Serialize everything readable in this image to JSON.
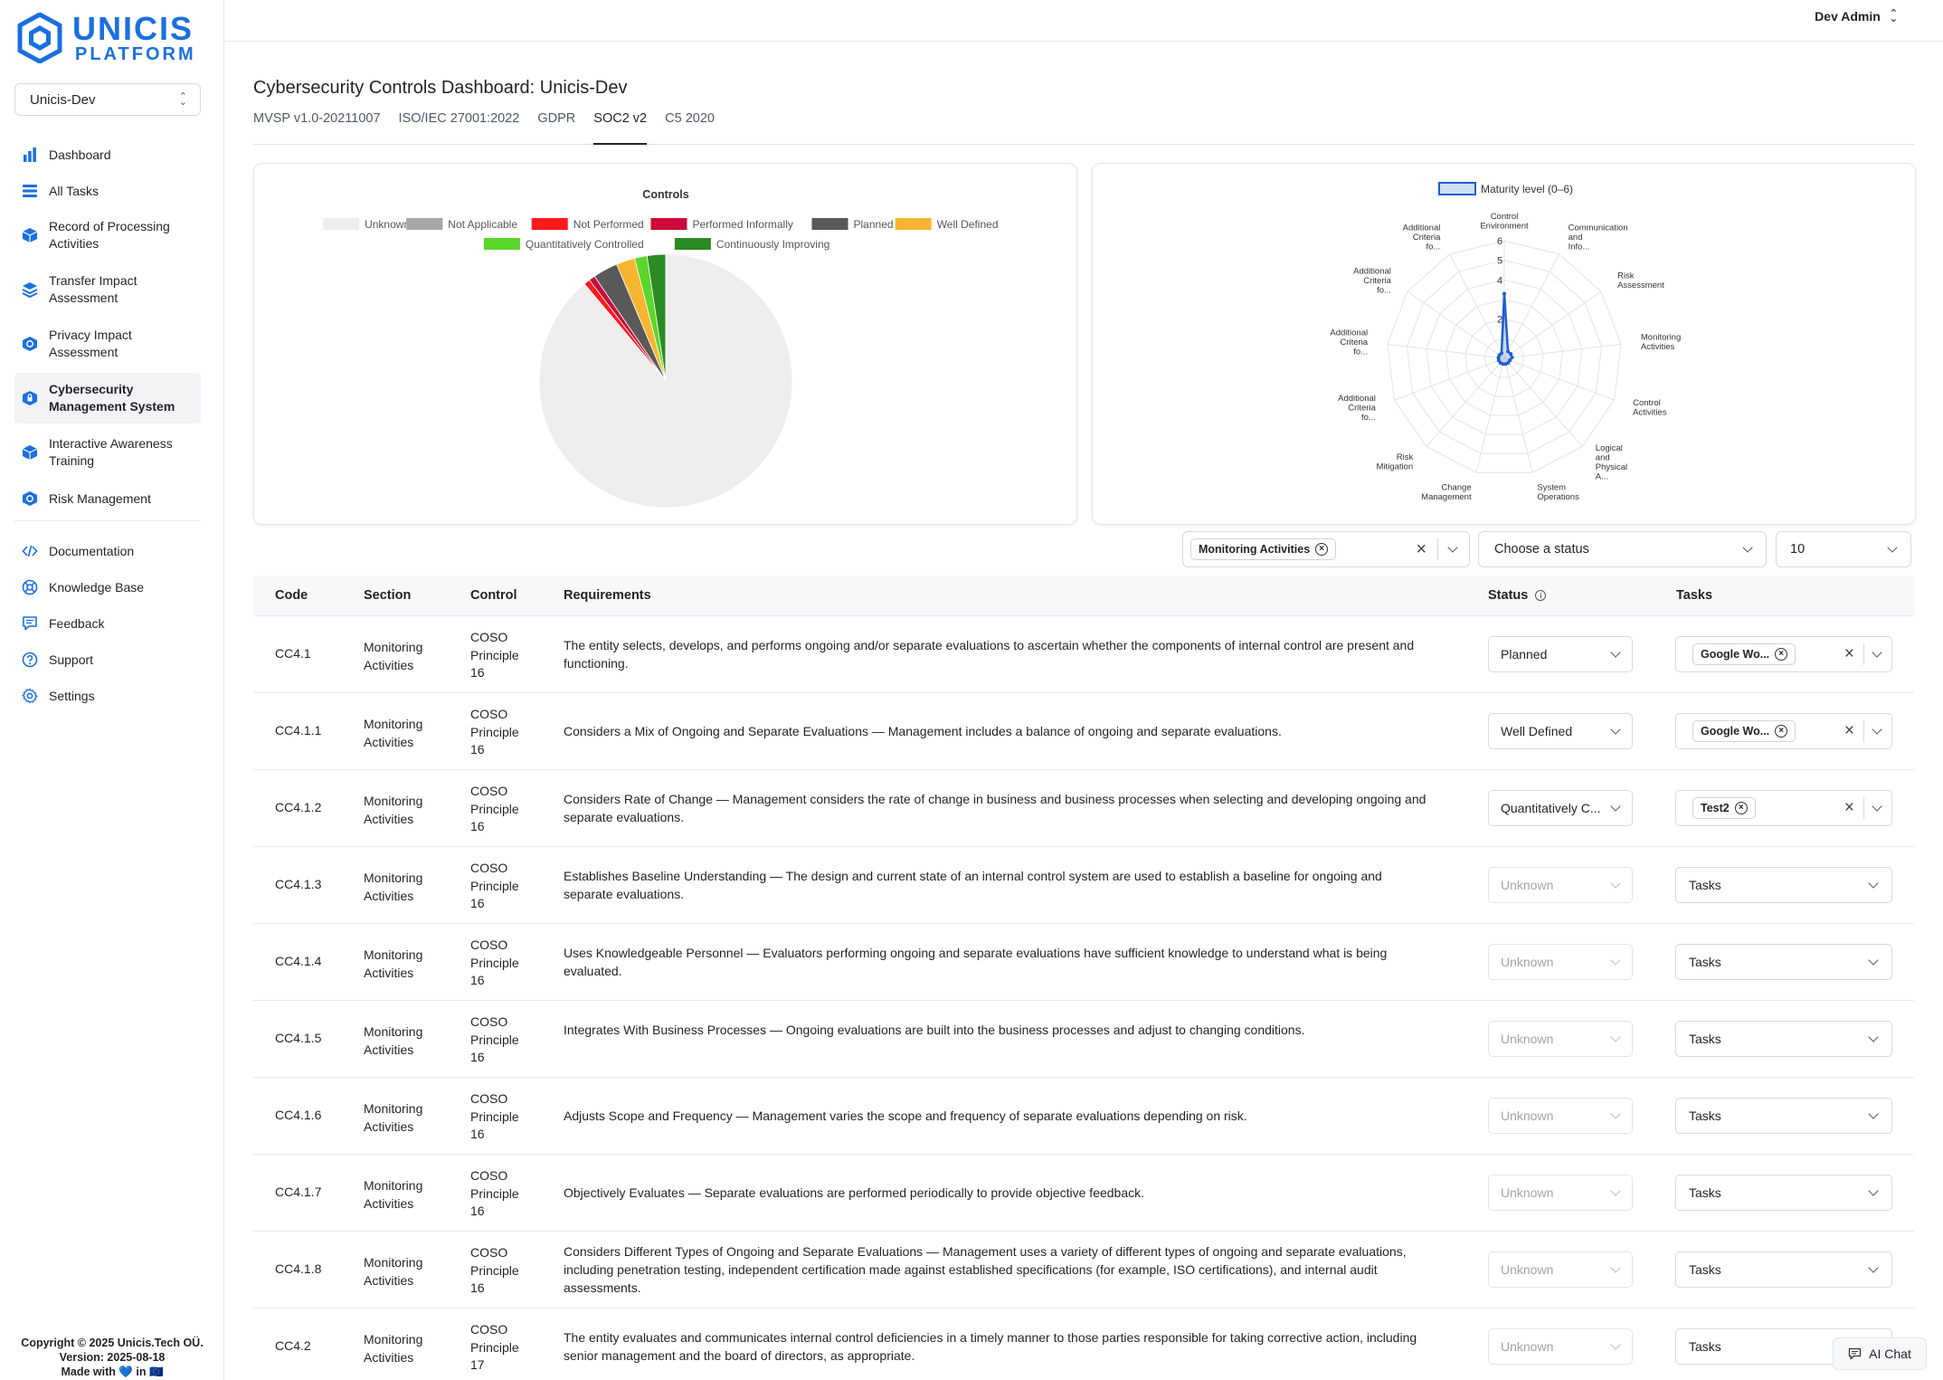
{
  "brand": {
    "line1": "UNICIS",
    "line2": "PLATFORM"
  },
  "org_select": {
    "value": "Unicis-Dev"
  },
  "nav": [
    {
      "label": "Dashboard",
      "icon": "bar-chart-icon"
    },
    {
      "label": "All Tasks",
      "icon": "list-icon"
    },
    {
      "label": "Record of Processing Activities",
      "icon": "cube-icon"
    },
    {
      "label": "Transfer Impact Assessment",
      "icon": "layers-icon"
    },
    {
      "label": "Privacy Impact Assessment",
      "icon": "shield-icon"
    },
    {
      "label": "Cybersecurity Management System",
      "icon": "shield-lock-icon",
      "active": true
    },
    {
      "label": "Interactive Awareness Training",
      "icon": "cube-icon"
    },
    {
      "label": "Risk Management",
      "icon": "shield-icon"
    }
  ],
  "nav_secondary": [
    {
      "label": "Documentation",
      "icon": "code-icon"
    },
    {
      "label": "Knowledge Base",
      "icon": "lifebuoy-icon"
    },
    {
      "label": "Feedback",
      "icon": "chat-icon"
    },
    {
      "label": "Support",
      "icon": "question-icon"
    },
    {
      "label": "Settings",
      "icon": "gear-icon"
    }
  ],
  "footer": {
    "copyright": "Copyright © 2025 Unicis.Tech OÜ.",
    "version": "Version: 2025-08-18",
    "made_with": "Made with 💙 in 🇪🇺"
  },
  "user_menu": {
    "name": "Dev Admin"
  },
  "page_title": "Cybersecurity Controls Dashboard: Unicis-Dev",
  "tabs": [
    {
      "label": "MVSP v1.0-20211007",
      "active": false
    },
    {
      "label": "ISO/IEC 27001:2022",
      "active": false
    },
    {
      "label": "GDPR",
      "active": false
    },
    {
      "label": "SOC2 v2",
      "active": true
    },
    {
      "label": "C5 2020",
      "active": false
    }
  ],
  "chart_data": [
    {
      "type": "pie",
      "title": "Controls",
      "categories": [
        "Unknown",
        "Not Applicable",
        "Not Performed",
        "Performed Informally",
        "Planned",
        "Well Defined",
        "Quantitatively Controlled",
        "Continuously Improving"
      ],
      "values": [
        56,
        0,
        0.5,
        0.5,
        2,
        1.5,
        1,
        1.5
      ],
      "colors": [
        "#ededed",
        "#a6a6a6",
        "#ff1a1a",
        "#cc0a3a",
        "#595959",
        "#f7b52f",
        "#5bd62b",
        "#2a8a23"
      ],
      "legend_position": "top"
    },
    {
      "type": "radar",
      "series": [
        {
          "name": "Maturity level (0–6)",
          "values": [
            3.3,
            0.4,
            0.4,
            0.4,
            0.3,
            0.3,
            0.3,
            0.3,
            0.3,
            0.3,
            0.3,
            0.3,
            0.3
          ]
        }
      ],
      "categories": [
        "Control Environment",
        "Communication and Info...",
        "Risk Assessment",
        "Monitoring Activities",
        "Control Activities",
        "Logical and Physical A...",
        "System Operations",
        "Change Management",
        "Risk Mitigation",
        "Additional Criteria fo...",
        "Additional Criteria fo...",
        "Additional Criteria fo...",
        "Additional Criteria fo..."
      ],
      "ticks": [
        "2",
        "4",
        "5",
        "6"
      ],
      "rmax": 6,
      "legend_position": "top"
    }
  ],
  "filters": {
    "section_chip": "Monitoring Activities",
    "status_placeholder": "Choose a status",
    "page_size": "10"
  },
  "table": {
    "headers": {
      "code": "Code",
      "section": "Section",
      "control": "Control",
      "requirements": "Requirements",
      "status": "Status",
      "tasks": "Tasks"
    },
    "rows": [
      {
        "code": "CC4.1",
        "section": "Monitoring Activities",
        "control": "COSO Principle 16",
        "requirements": "The entity selects, develops, and performs ongoing and/or separate evaluations to ascertain whether the components of internal control are present and functioning.",
        "status": "Planned",
        "status_disabled": false,
        "task_chip": "Google Wo...",
        "tasks_placeholder": ""
      },
      {
        "code": "CC4.1.1",
        "section": "Monitoring Activities",
        "control": "COSO Principle 16",
        "requirements": "Considers a Mix of Ongoing and Separate Evaluations — Management includes a balance of ongoing and separate evaluations.",
        "status": "Well Defined",
        "status_disabled": false,
        "task_chip": "Google Wo...",
        "tasks_placeholder": ""
      },
      {
        "code": "CC4.1.2",
        "section": "Monitoring Activities",
        "control": "COSO Principle 16",
        "requirements": "Considers Rate of Change — Management considers the rate of change in business and business processes when selecting and developing ongoing and separate evaluations.",
        "status": "Quantitatively C...",
        "status_disabled": false,
        "task_chip": "Test2",
        "tasks_placeholder": ""
      },
      {
        "code": "CC4.1.3",
        "section": "Monitoring Activities",
        "control": "COSO Principle 16",
        "requirements": "Establishes Baseline Understanding — The design and current state of an internal control system are used to establish a baseline for ongoing and separate evaluations.",
        "status": "Unknown",
        "status_disabled": true,
        "task_chip": "",
        "tasks_placeholder": "Tasks"
      },
      {
        "code": "CC4.1.4",
        "section": "Monitoring Activities",
        "control": "COSO Principle 16",
        "requirements": "Uses Knowledgeable Personnel — Evaluators performing ongoing and separate evaluations have sufficient knowledge to understand what is being evaluated.",
        "status": "Unknown",
        "status_disabled": true,
        "task_chip": "",
        "tasks_placeholder": "Tasks"
      },
      {
        "code": "CC4.1.5",
        "section": "Monitoring Activities",
        "control": "COSO Principle 16",
        "requirements": "Integrates With Business Processes — Ongoing evaluations are built into the business processes and adjust to changing conditions.",
        "status": "Unknown",
        "status_disabled": true,
        "task_chip": "",
        "tasks_placeholder": "Tasks"
      },
      {
        "code": "CC4.1.6",
        "section": "Monitoring Activities",
        "control": "COSO Principle 16",
        "requirements": "Adjusts Scope and Frequency — Management varies the scope and frequency of separate evaluations depending on risk.",
        "status": "Unknown",
        "status_disabled": true,
        "task_chip": "",
        "tasks_placeholder": "Tasks"
      },
      {
        "code": "CC4.1.7",
        "section": "Monitoring Activities",
        "control": "COSO Principle 16",
        "requirements": "Objectively Evaluates — Separate evaluations are performed periodically to provide objective feedback.",
        "status": "Unknown",
        "status_disabled": true,
        "task_chip": "",
        "tasks_placeholder": "Tasks"
      },
      {
        "code": "CC4.1.8",
        "section": "Monitoring Activities",
        "control": "COSO Principle 16",
        "requirements": "Considers Different Types of Ongoing and Separate Evaluations — Management uses a variety of different types of ongoing and separate evaluations, including penetration testing, independent certification made against established specifications (for example, ISO certifications), and internal audit assessments.",
        "status": "Unknown",
        "status_disabled": true,
        "task_chip": "",
        "tasks_placeholder": "Tasks"
      },
      {
        "code": "CC4.2",
        "section": "Monitoring Activities",
        "control": "COSO Principle 17",
        "requirements": "The entity evaluates and communicates internal control deficiencies in a timely manner to those parties responsible for taking corrective action, including senior management and the board of directors, as appropriate.",
        "status": "Unknown",
        "status_disabled": true,
        "task_chip": "",
        "tasks_placeholder": "Tasks"
      }
    ]
  },
  "ai_chat": {
    "label": "AI Chat"
  }
}
